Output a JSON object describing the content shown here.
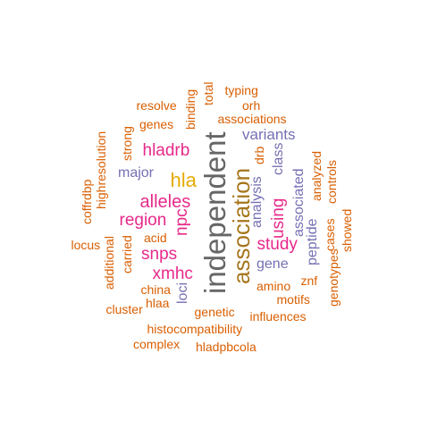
{
  "palette": {
    "orange": "#d95f02",
    "purple": "#7570b3",
    "magenta": "#e7298a",
    "gold": "#e6ab02",
    "olive": "#a6761d",
    "gray": "#666666"
  },
  "words": [
    {
      "text": "independent",
      "color": "gray"
    },
    {
      "text": "association",
      "color": "olive"
    },
    {
      "text": "hla",
      "color": "gold"
    },
    {
      "text": "alleles",
      "color": "magenta"
    },
    {
      "text": "region",
      "color": "magenta"
    },
    {
      "text": "hladrb",
      "color": "magenta"
    },
    {
      "text": "snps",
      "color": "magenta"
    },
    {
      "text": "xmhc",
      "color": "magenta"
    },
    {
      "text": "npc",
      "color": "magenta"
    },
    {
      "text": "study",
      "color": "magenta"
    },
    {
      "text": "using",
      "color": "magenta"
    },
    {
      "text": "variants",
      "color": "purple"
    },
    {
      "text": "major",
      "color": "purple"
    },
    {
      "text": "gene",
      "color": "purple"
    },
    {
      "text": "loci",
      "color": "purple"
    },
    {
      "text": "class",
      "color": "purple"
    },
    {
      "text": "analysis",
      "color": "purple"
    },
    {
      "text": "associated",
      "color": "purple"
    },
    {
      "text": "peptide",
      "color": "purple"
    },
    {
      "text": "drb",
      "color": "orange"
    },
    {
      "text": "typing",
      "color": "orange"
    },
    {
      "text": "total",
      "color": "orange"
    },
    {
      "text": "binding",
      "color": "orange"
    },
    {
      "text": "resolve",
      "color": "orange"
    },
    {
      "text": "orh",
      "color": "orange"
    },
    {
      "text": "genes",
      "color": "orange"
    },
    {
      "text": "associations",
      "color": "orange"
    },
    {
      "text": "strong",
      "color": "orange"
    },
    {
      "text": "highresolution",
      "color": "orange"
    },
    {
      "text": "coffrdbp",
      "color": "orange"
    },
    {
      "text": "analyzed",
      "color": "orange"
    },
    {
      "text": "controls",
      "color": "orange"
    },
    {
      "text": "cases",
      "color": "orange"
    },
    {
      "text": "showed",
      "color": "orange"
    },
    {
      "text": "acid",
      "color": "orange"
    },
    {
      "text": "locus",
      "color": "orange"
    },
    {
      "text": "carried",
      "color": "orange"
    },
    {
      "text": "additional",
      "color": "orange"
    },
    {
      "text": "znf",
      "color": "orange"
    },
    {
      "text": "genotypes",
      "color": "orange"
    },
    {
      "text": "amino",
      "color": "orange"
    },
    {
      "text": "motifs",
      "color": "orange"
    },
    {
      "text": "china",
      "color": "orange"
    },
    {
      "text": "hlaa",
      "color": "orange"
    },
    {
      "text": "cluster",
      "color": "orange"
    },
    {
      "text": "genetic",
      "color": "orange"
    },
    {
      "text": "influences",
      "color": "orange"
    },
    {
      "text": "histocompatibility",
      "color": "orange"
    },
    {
      "text": "complex",
      "color": "orange"
    },
    {
      "text": "hladpbcola",
      "color": "orange"
    }
  ]
}
